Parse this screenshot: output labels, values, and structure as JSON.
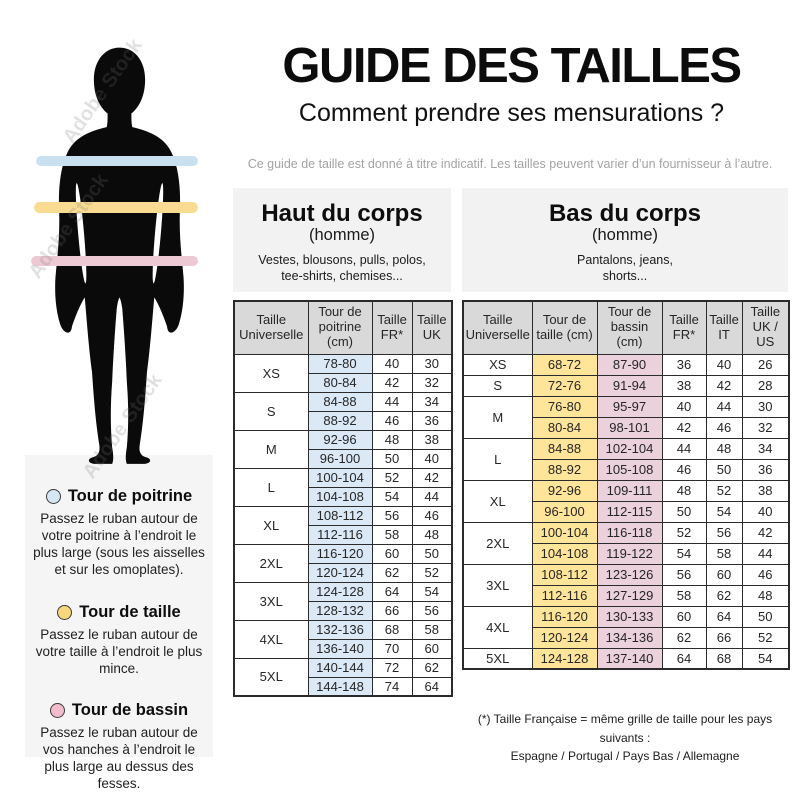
{
  "title": "GUIDE DES TAILLES",
  "subtitle": "Comment prendre ses mensurations ?",
  "disclaimer": "Ce guide de taille est donné à titre indicatif. Les tailles peuvent varier d’un fournisseur à l’autre.",
  "watermark": "Adobe Stock",
  "figure": {
    "bands": [
      {
        "name": "chest",
        "color": "#c9e0f1"
      },
      {
        "name": "waist",
        "color": "#f9dc92"
      },
      {
        "name": "hip",
        "color": "#ecc9d3"
      }
    ]
  },
  "legend": [
    {
      "title": "Tour de poitrine",
      "color": "#d6e7f4",
      "text": "Passez le ruban autour de votre poitrine à l’endroit le plus large (sous les aisselles et sur les omoplates)."
    },
    {
      "title": "Tour de taille",
      "color": "#f6d77e",
      "text": "Passez le ruban autour de votre taille à l’endroit le plus mince."
    },
    {
      "title": "Tour de bassin",
      "color": "#f1bccb",
      "text": "Passez le ruban autour de vos hanches à l’endroit le plus large au dessus des fesses."
    }
  ],
  "upper_table": {
    "title": "Haut du corps",
    "subtitle": "(homme)",
    "description": "Vestes, blousons, pulls, polos, tee-shirts, chemises...",
    "headers": [
      "Taille Universelle",
      "Tour de poitrine (cm)",
      "Taille FR*",
      "Taille UK"
    ],
    "column_colors": {
      "0": "#dbe8f6"
    },
    "groups": [
      {
        "size": "XS",
        "rows": [
          [
            "78-80",
            "40",
            "30"
          ],
          [
            "80-84",
            "42",
            "32"
          ]
        ]
      },
      {
        "size": "S",
        "rows": [
          [
            "84-88",
            "44",
            "34"
          ],
          [
            "88-92",
            "46",
            "36"
          ]
        ]
      },
      {
        "size": "M",
        "rows": [
          [
            "92-96",
            "48",
            "38"
          ],
          [
            "96-100",
            "50",
            "40"
          ]
        ]
      },
      {
        "size": "L",
        "rows": [
          [
            "100-104",
            "52",
            "42"
          ],
          [
            "104-108",
            "54",
            "44"
          ]
        ]
      },
      {
        "size": "XL",
        "rows": [
          [
            "108-112",
            "56",
            "46"
          ],
          [
            "112-116",
            "58",
            "48"
          ]
        ]
      },
      {
        "size": "2XL",
        "rows": [
          [
            "116-120",
            "60",
            "50"
          ],
          [
            "120-124",
            "62",
            "52"
          ]
        ]
      },
      {
        "size": "3XL",
        "rows": [
          [
            "124-128",
            "64",
            "54"
          ],
          [
            "128-132",
            "66",
            "56"
          ]
        ]
      },
      {
        "size": "4XL",
        "rows": [
          [
            "132-136",
            "68",
            "58"
          ],
          [
            "136-140",
            "70",
            "60"
          ]
        ]
      },
      {
        "size": "5XL",
        "rows": [
          [
            "140-144",
            "72",
            "62"
          ],
          [
            "144-148",
            "74",
            "64"
          ]
        ]
      }
    ]
  },
  "lower_table": {
    "title": "Bas du corps",
    "subtitle": "(homme)",
    "description": "Pantalons, jeans, shorts...",
    "headers": [
      "Taille Universelle",
      "Tour de taille (cm)",
      "Tour de bassin (cm)",
      "Taille FR*",
      "Taille IT",
      "Taille UK / US"
    ],
    "column_colors": {
      "0": "#ffe599",
      "1": "#ead1dc"
    },
    "groups": [
      {
        "size": "XS",
        "rows": [
          [
            "68-72",
            "87-90",
            "36",
            "40",
            "26"
          ]
        ]
      },
      {
        "size": "S",
        "rows": [
          [
            "72-76",
            "91-94",
            "38",
            "42",
            "28"
          ]
        ]
      },
      {
        "size": "M",
        "rows": [
          [
            "76-80",
            "95-97",
            "40",
            "44",
            "30"
          ],
          [
            "80-84",
            "98-101",
            "42",
            "46",
            "32"
          ]
        ]
      },
      {
        "size": "L",
        "rows": [
          [
            "84-88",
            "102-104",
            "44",
            "48",
            "34"
          ],
          [
            "88-92",
            "105-108",
            "46",
            "50",
            "36"
          ]
        ]
      },
      {
        "size": "XL",
        "rows": [
          [
            "92-96",
            "109-111",
            "48",
            "52",
            "38"
          ],
          [
            "96-100",
            "112-115",
            "50",
            "54",
            "40"
          ]
        ]
      },
      {
        "size": "2XL",
        "rows": [
          [
            "100-104",
            "116-118",
            "52",
            "56",
            "42"
          ],
          [
            "104-108",
            "119-122",
            "54",
            "58",
            "44"
          ]
        ]
      },
      {
        "size": "3XL",
        "rows": [
          [
            "108-112",
            "123-126",
            "56",
            "60",
            "46"
          ],
          [
            "112-116",
            "127-129",
            "58",
            "62",
            "48"
          ]
        ]
      },
      {
        "size": "4XL",
        "rows": [
          [
            "116-120",
            "130-133",
            "60",
            "64",
            "50"
          ],
          [
            "120-124",
            "134-136",
            "62",
            "66",
            "52"
          ]
        ]
      },
      {
        "size": "5XL",
        "rows": [
          [
            "124-128",
            "137-140",
            "64",
            "68",
            "54"
          ]
        ]
      }
    ]
  },
  "footnote": {
    "line1": "(*) Taille Française = même grille de taille pour les pays suivants :",
    "line2": "Espagne / Portugal / Pays Bas / Allemagne"
  }
}
